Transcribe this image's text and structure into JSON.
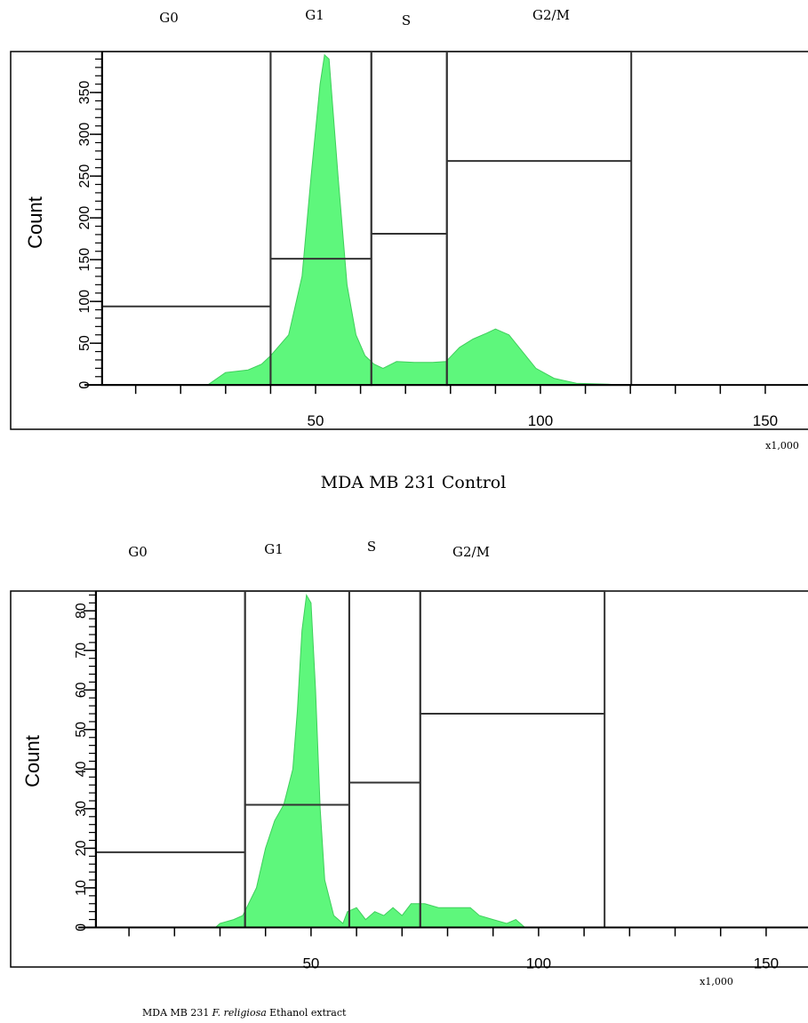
{
  "chart_data": [
    {
      "type": "area",
      "color": "#5ef77c",
      "ylabel": "Count",
      "x_multiplier": "x1,000",
      "caption": [
        "MDA MB 231 Control"
      ],
      "xlim": [
        -17.8,
        159.5
      ],
      "ylim": [
        -53,
        399
      ],
      "xticks": [
        50,
        100,
        150
      ],
      "xminor": [
        10,
        20,
        30,
        40,
        50,
        60,
        70,
        80,
        90,
        100,
        110,
        120,
        130,
        140,
        150
      ],
      "yticks": [
        0,
        50,
        100,
        150,
        200,
        250,
        300,
        350
      ],
      "yminor": [
        0,
        10,
        20,
        30,
        40,
        50,
        60,
        70,
        80,
        90,
        100,
        110,
        120,
        130,
        140,
        150,
        160,
        170,
        180,
        190,
        200,
        210,
        220,
        230,
        240,
        250,
        260,
        270,
        280,
        290,
        300,
        310,
        320,
        330,
        340,
        350,
        360,
        370,
        380,
        390
      ],
      "gates": [
        {
          "label": "G0",
          "x": [
            2.5,
            40
          ],
          "y": 94
        },
        {
          "label": "G1",
          "x": [
            40,
            62.4
          ],
          "y": 151
        },
        {
          "label": "S",
          "x": [
            62.4,
            79.2
          ],
          "y": 181
        },
        {
          "label": "G2/M",
          "x": [
            79.2,
            120.2
          ],
          "y": 268
        }
      ],
      "x": [
        26,
        30,
        35,
        38,
        40,
        44,
        47,
        49,
        51,
        52,
        53,
        55,
        57,
        59,
        61,
        63,
        65,
        68,
        72,
        76,
        79,
        82,
        85,
        88,
        90,
        93,
        96,
        99,
        103,
        108,
        115,
        118
      ],
      "values": [
        0,
        15,
        18,
        25,
        35,
        60,
        130,
        250,
        360,
        395,
        390,
        250,
        120,
        60,
        35,
        25,
        20,
        28,
        27,
        27,
        28,
        45,
        55,
        62,
        67,
        60,
        40,
        20,
        8,
        2,
        1,
        0
      ]
    },
    {
      "type": "area",
      "color": "#5ef77c",
      "ylabel": "Count",
      "x_multiplier": "x1,000",
      "caption": [
        "MDA MB 231",
        "F. religiosa",
        "Ethanol extract"
      ],
      "xlim": [
        -16,
        159.2
      ],
      "ylim": [
        -10,
        85
      ],
      "xticks": [
        50,
        100,
        150
      ],
      "xminor": [
        10,
        20,
        30,
        40,
        50,
        60,
        70,
        80,
        90,
        100,
        110,
        120,
        130,
        140,
        150
      ],
      "yticks": [
        0,
        10,
        20,
        30,
        40,
        50,
        60,
        70,
        80
      ],
      "yminor": [
        0,
        2,
        4,
        6,
        8,
        10,
        12,
        14,
        16,
        18,
        20,
        22,
        24,
        26,
        28,
        30,
        32,
        34,
        36,
        38,
        40,
        42,
        44,
        46,
        48,
        50,
        52,
        54,
        56,
        58,
        60,
        62,
        64,
        66,
        68,
        70,
        72,
        74,
        76,
        78,
        80,
        82,
        84
      ],
      "gates": [
        {
          "label": "G0",
          "x": [
            2.7,
            35.5
          ],
          "y": 19
        },
        {
          "label": "G1",
          "x": [
            35.5,
            58.4
          ],
          "y": 31
        },
        {
          "label": "S",
          "x": [
            58.4,
            74
          ],
          "y": 36.6
        },
        {
          "label": "G2/M",
          "x": [
            74,
            114.5
          ],
          "y": 54
        }
      ],
      "x": [
        29,
        30,
        33,
        35,
        38,
        40,
        42,
        44,
        46,
        47,
        48,
        49,
        50,
        51,
        52,
        53,
        55,
        57,
        58,
        60,
        62,
        64,
        66,
        68,
        70,
        72,
        75,
        78,
        82,
        85,
        87,
        90,
        93,
        95,
        97
      ],
      "values": [
        0,
        1,
        2,
        3,
        10,
        20,
        27,
        31,
        40,
        55,
        75,
        84,
        82,
        60,
        30,
        12,
        3,
        1,
        4,
        5,
        2,
        4,
        3,
        5,
        3,
        6,
        6,
        5,
        5,
        5,
        3,
        2,
        1,
        2,
        0
      ]
    }
  ]
}
